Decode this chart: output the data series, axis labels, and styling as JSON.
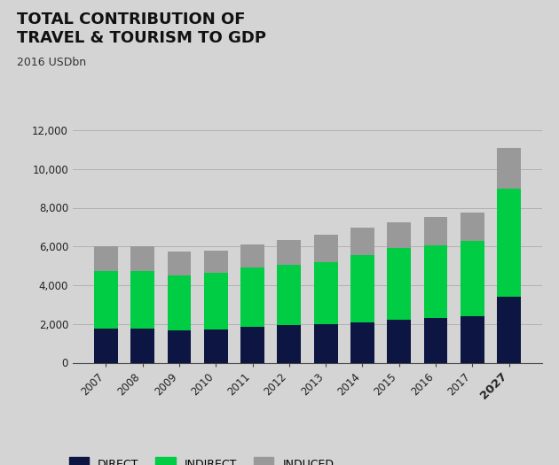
{
  "title_line1": "TOTAL CONTRIBUTION OF",
  "title_line2": "TRAVEL & TOURISM TO GDP",
  "ylabel": "2016 USDbn",
  "categories": [
    "2007",
    "2008",
    "2009",
    "2010",
    "2011",
    "2012",
    "2013",
    "2014",
    "2015",
    "2016",
    "2017",
    "2027"
  ],
  "direct": [
    1750,
    1750,
    1650,
    1700,
    1850,
    1950,
    2000,
    2100,
    2200,
    2300,
    2400,
    3400
  ],
  "indirect": [
    3000,
    3000,
    2850,
    2950,
    3050,
    3100,
    3200,
    3450,
    3700,
    3750,
    3900,
    5600
  ],
  "induced": [
    1250,
    1250,
    1250,
    1150,
    1200,
    1300,
    1400,
    1400,
    1350,
    1450,
    1450,
    2100
  ],
  "color_direct": "#0d1542",
  "color_indirect": "#00cc44",
  "color_induced": "#999999",
  "background_color": "#d4d4d4",
  "ylim": [
    0,
    12000
  ],
  "yticks": [
    0,
    2000,
    4000,
    6000,
    8000,
    10000,
    12000
  ],
  "title_fontsize": 13,
  "ylabel_fontsize": 9,
  "legend_labels": [
    "DIRECT",
    "INDIRECT",
    "INDUCED"
  ]
}
